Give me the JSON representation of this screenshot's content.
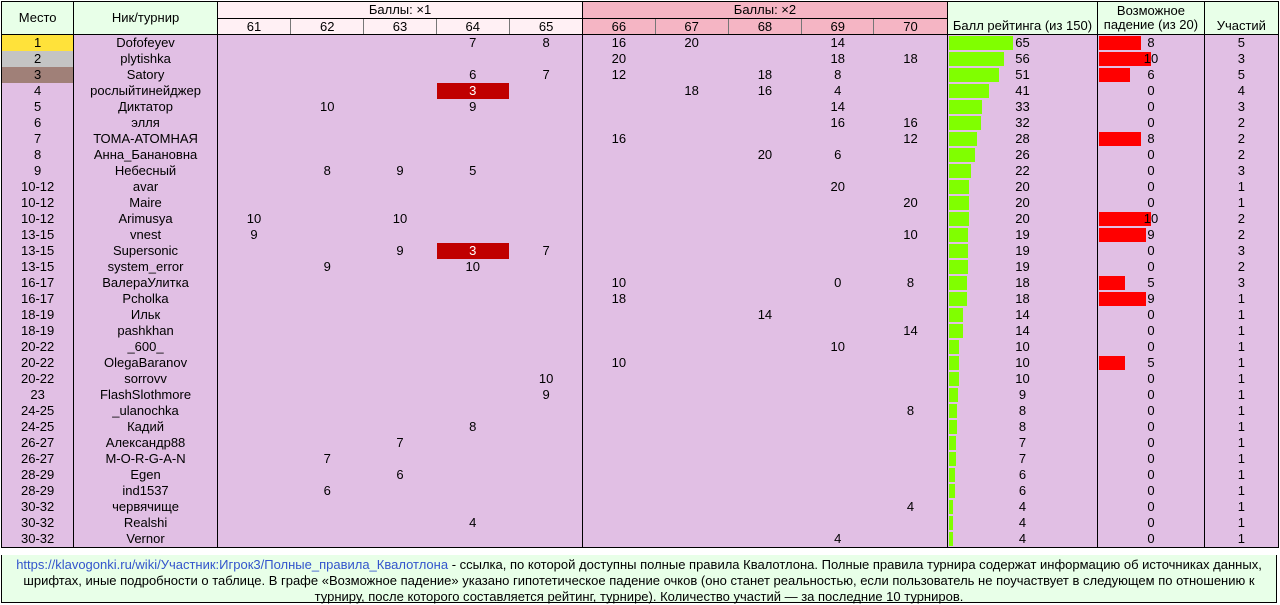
{
  "headers": {
    "place": "Место",
    "nick": "Ник/турнир",
    "group1": "Баллы: ×1",
    "group2": "Баллы: ×2",
    "rating": "Балл рейтинга (из 150)",
    "drop": "Возможное падение (из 20)",
    "participations": "Участий",
    "tournaments": [
      "61",
      "62",
      "63",
      "64",
      "65",
      "66",
      "67",
      "68",
      "69",
      "70"
    ]
  },
  "rows": [
    {
      "place": "1",
      "nick": "Dofofeyev",
      "scores": [
        "",
        "",
        "",
        "7",
        "8",
        "16",
        "20",
        "",
        "14",
        ""
      ],
      "rating": "65",
      "rating_fill": 0.4333,
      "drop": "8",
      "drop_fill": 0.4,
      "count": "5"
    },
    {
      "place": "2",
      "nick": "plytishka",
      "scores": [
        "",
        "",
        "",
        "",
        "",
        "20",
        "",
        "",
        "18",
        "18"
      ],
      "rating": "56",
      "rating_fill": 0.3733,
      "drop": "10",
      "drop_fill": 0.5,
      "count": "3"
    },
    {
      "place": "3",
      "nick": "Satory",
      "scores": [
        "",
        "",
        "",
        "6",
        "7",
        "12",
        "",
        "18",
        "8",
        ""
      ],
      "rating": "51",
      "rating_fill": 0.34,
      "drop": "6",
      "drop_fill": 0.3,
      "count": "5"
    },
    {
      "place": "4",
      "nick": "рослыйтинейджер",
      "scores": [
        "",
        "",
        "",
        "3",
        "",
        "",
        "18",
        "16",
        "4",
        ""
      ],
      "neg": [
        3
      ],
      "rating": "41",
      "rating_fill": 0.2733,
      "drop": "0",
      "drop_fill": 0,
      "count": "4"
    },
    {
      "place": "5",
      "nick": "Диктатор",
      "scores": [
        "",
        "10",
        "",
        "9",
        "",
        "",
        "",
        "",
        "14",
        ""
      ],
      "rating": "33",
      "rating_fill": 0.22,
      "drop": "0",
      "drop_fill": 0,
      "count": "3"
    },
    {
      "place": "6",
      "nick": "элля",
      "scores": [
        "",
        "",
        "",
        "",
        "",
        "",
        "",
        "",
        "16",
        "16"
      ],
      "rating": "32",
      "rating_fill": 0.2133,
      "drop": "0",
      "drop_fill": 0,
      "count": "2"
    },
    {
      "place": "7",
      "nick": "ТОМА-АТОМНАЯ",
      "scores": [
        "",
        "",
        "",
        "",
        "",
        "16",
        "",
        "",
        "",
        "12"
      ],
      "rating": "28",
      "rating_fill": 0.1867,
      "drop": "8",
      "drop_fill": 0.4,
      "count": "2"
    },
    {
      "place": "8",
      "nick": "Анна_Банановна",
      "scores": [
        "",
        "",
        "",
        "",
        "",
        "",
        "",
        "20",
        "6",
        ""
      ],
      "rating": "26",
      "rating_fill": 0.1733,
      "drop": "0",
      "drop_fill": 0,
      "count": "2"
    },
    {
      "place": "9",
      "nick": "Небесный",
      "scores": [
        "",
        "8",
        "9",
        "5",
        "",
        "",
        "",
        "",
        "",
        ""
      ],
      "rating": "22",
      "rating_fill": 0.1467,
      "drop": "0",
      "drop_fill": 0,
      "count": "3"
    },
    {
      "place": "10-12",
      "nick": "avar",
      "scores": [
        "",
        "",
        "",
        "",
        "",
        "",
        "",
        "",
        "20",
        ""
      ],
      "rating": "20",
      "rating_fill": 0.1333,
      "drop": "0",
      "drop_fill": 0,
      "count": "1"
    },
    {
      "place": "10-12",
      "nick": "Maire",
      "scores": [
        "",
        "",
        "",
        "",
        "",
        "",
        "",
        "",
        "",
        "20"
      ],
      "rating": "20",
      "rating_fill": 0.1333,
      "drop": "0",
      "drop_fill": 0,
      "count": "1"
    },
    {
      "place": "10-12",
      "nick": "Arimusya",
      "scores": [
        "10",
        "",
        "10",
        "",
        "",
        "",
        "",
        "",
        "",
        ""
      ],
      "rating": "20",
      "rating_fill": 0.1333,
      "drop": "10",
      "drop_fill": 0.5,
      "count": "2"
    },
    {
      "place": "13-15",
      "nick": "vnest",
      "scores": [
        "9",
        "",
        "",
        "",
        "",
        "",
        "",
        "",
        "",
        "10"
      ],
      "rating": "19",
      "rating_fill": 0.1267,
      "drop": "9",
      "drop_fill": 0.45,
      "count": "2"
    },
    {
      "place": "13-15",
      "nick": "Supersonic",
      "scores": [
        "",
        "",
        "9",
        "3",
        "7",
        "",
        "",
        "",
        "",
        ""
      ],
      "neg": [
        3
      ],
      "rating": "19",
      "rating_fill": 0.1267,
      "drop": "0",
      "drop_fill": 0,
      "count": "3"
    },
    {
      "place": "13-15",
      "nick": "system_error",
      "scores": [
        "",
        "9",
        "",
        "10",
        "",
        "",
        "",
        "",
        "",
        ""
      ],
      "rating": "19",
      "rating_fill": 0.1267,
      "drop": "0",
      "drop_fill": 0,
      "count": "2"
    },
    {
      "place": "16-17",
      "nick": "ВалераУлитка",
      "scores": [
        "",
        "",
        "",
        "",
        "",
        "10",
        "",
        "",
        "0",
        "8"
      ],
      "rating": "18",
      "rating_fill": 0.12,
      "drop": "5",
      "drop_fill": 0.25,
      "count": "3"
    },
    {
      "place": "16-17",
      "nick": "Pcholka",
      "scores": [
        "",
        "",
        "",
        "",
        "",
        "18",
        "",
        "",
        "",
        ""
      ],
      "rating": "18",
      "rating_fill": 0.12,
      "drop": "9",
      "drop_fill": 0.45,
      "count": "1"
    },
    {
      "place": "18-19",
      "nick": "Ильк",
      "scores": [
        "",
        "",
        "",
        "",
        "",
        "",
        "",
        "14",
        "",
        ""
      ],
      "rating": "14",
      "rating_fill": 0.0933,
      "drop": "0",
      "drop_fill": 0,
      "count": "1"
    },
    {
      "place": "18-19",
      "nick": "pashkhan",
      "scores": [
        "",
        "",
        "",
        "",
        "",
        "",
        "",
        "",
        "",
        "14"
      ],
      "rating": "14",
      "rating_fill": 0.0933,
      "drop": "0",
      "drop_fill": 0,
      "count": "1"
    },
    {
      "place": "20-22",
      "nick": "_600_",
      "scores": [
        "",
        "",
        "",
        "",
        "",
        "",
        "",
        "",
        "10",
        ""
      ],
      "rating": "10",
      "rating_fill": 0.0667,
      "drop": "0",
      "drop_fill": 0,
      "count": "1"
    },
    {
      "place": "20-22",
      "nick": "OlegaBaranov",
      "scores": [
        "",
        "",
        "",
        "",
        "",
        "10",
        "",
        "",
        "",
        ""
      ],
      "rating": "10",
      "rating_fill": 0.0667,
      "drop": "5",
      "drop_fill": 0.25,
      "count": "1"
    },
    {
      "place": "20-22",
      "nick": "sorrovv",
      "scores": [
        "",
        "",
        "",
        "",
        "10",
        "",
        "",
        "",
        "",
        ""
      ],
      "rating": "10",
      "rating_fill": 0.0667,
      "drop": "0",
      "drop_fill": 0,
      "count": "1"
    },
    {
      "place": "23",
      "nick": "FlashSlothmore",
      "scores": [
        "",
        "",
        "",
        "",
        "9",
        "",
        "",
        "",
        "",
        ""
      ],
      "rating": "9",
      "rating_fill": 0.06,
      "drop": "0",
      "drop_fill": 0,
      "count": "1"
    },
    {
      "place": "24-25",
      "nick": "_ulanochka",
      "scores": [
        "",
        "",
        "",
        "",
        "",
        "",
        "",
        "",
        "",
        "8"
      ],
      "rating": "8",
      "rating_fill": 0.0533,
      "drop": "0",
      "drop_fill": 0,
      "count": "1"
    },
    {
      "place": "24-25",
      "nick": "Кадий",
      "scores": [
        "",
        "",
        "",
        "8",
        "",
        "",
        "",
        "",
        "",
        ""
      ],
      "rating": "8",
      "rating_fill": 0.0533,
      "drop": "0",
      "drop_fill": 0,
      "count": "1"
    },
    {
      "place": "26-27",
      "nick": "Александр88",
      "scores": [
        "",
        "",
        "7",
        "",
        "",
        "",
        "",
        "",
        "",
        ""
      ],
      "rating": "7",
      "rating_fill": 0.0467,
      "drop": "0",
      "drop_fill": 0,
      "count": "1"
    },
    {
      "place": "26-27",
      "nick": "M-O-R-G-A-N",
      "scores": [
        "",
        "7",
        "",
        "",
        "",
        "",
        "",
        "",
        "",
        ""
      ],
      "rating": "7",
      "rating_fill": 0.0467,
      "drop": "0",
      "drop_fill": 0,
      "count": "1"
    },
    {
      "place": "28-29",
      "nick": "Egen",
      "scores": [
        "",
        "",
        "6",
        "",
        "",
        "",
        "",
        "",
        "",
        ""
      ],
      "rating": "6",
      "rating_fill": 0.04,
      "drop": "0",
      "drop_fill": 0,
      "count": "1"
    },
    {
      "place": "28-29",
      "nick": "ind1537",
      "scores": [
        "",
        "6",
        "",
        "",
        "",
        "",
        "",
        "",
        "",
        ""
      ],
      "rating": "6",
      "rating_fill": 0.04,
      "drop": "0",
      "drop_fill": 0,
      "count": "1"
    },
    {
      "place": "30-32",
      "nick": "червячище",
      "scores": [
        "",
        "",
        "",
        "",
        "",
        "",
        "",
        "",
        "",
        "4"
      ],
      "rating": "4",
      "rating_fill": 0.0267,
      "drop": "0",
      "drop_fill": 0,
      "count": "1"
    },
    {
      "place": "30-32",
      "nick": "Realshi",
      "scores": [
        "",
        "",
        "",
        "4",
        "",
        "",
        "",
        "",
        "",
        ""
      ],
      "rating": "4",
      "rating_fill": 0.0267,
      "drop": "0",
      "drop_fill": 0,
      "count": "1"
    },
    {
      "place": "30-32",
      "nick": "Vernor",
      "scores": [
        "",
        "",
        "",
        "",
        "",
        "",
        "",
        "",
        "4",
        ""
      ],
      "rating": "4",
      "rating_fill": 0.0267,
      "drop": "0",
      "drop_fill": 0,
      "count": "1"
    }
  ],
  "colors": {
    "header_bg": "#e8ffe8",
    "group1_bg": "#fff0f4",
    "group2_bg": "#f5b5c4",
    "row_bg": "#e1bfe4",
    "gold": "#ffe23a",
    "silver": "#c4c4c4",
    "bronze": "#a08078",
    "negative": "#c00000",
    "rating_bar": "#80ff00",
    "drop_bar": "#ff0000",
    "link": "#3355cc"
  },
  "footer": {
    "link_text": "https://klavogonki.ru/wiki/Участник:Игрок3/Полные_правила_Квалотлона",
    "text": " - ссылка, по которой доступны полные правила Квалотлона. Полные правила турнира содержат информацию об источниках данных, шрифтах, иные подробности о таблице. В графе «Возможное падение» указано гипотетическое падение очков (оно станет реальностью, если пользователь не поучаствует в следующем по отношению к турниру, после которого составляется рейтинг, турнире). Количество участий — за последние 10 турниров."
  }
}
